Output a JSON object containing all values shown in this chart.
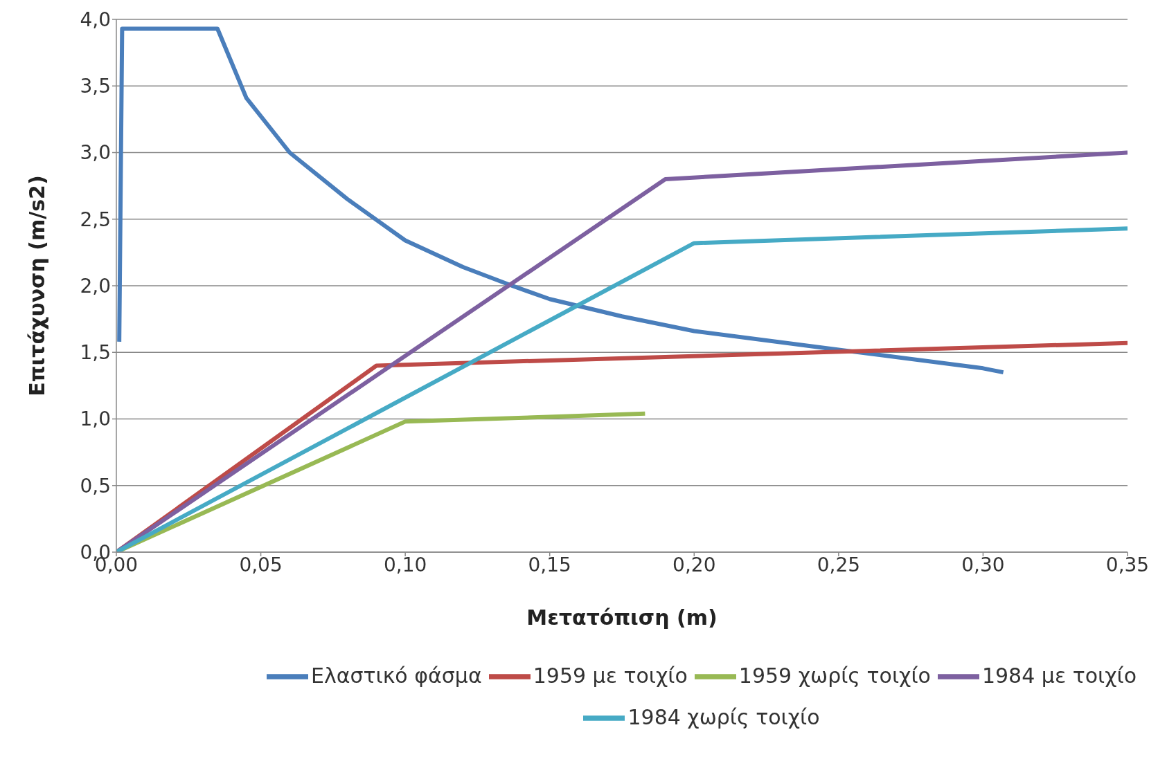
{
  "chart_data": {
    "type": "line",
    "xlabel": "Μετατόπιση (m)",
    "ylabel": "Επιτάχυνση (m/s2)",
    "xlim": [
      0,
      0.35
    ],
    "xticks": [
      {
        "value": 0,
        "label": "0,00"
      },
      {
        "value": 0.05,
        "label": "0,05"
      },
      {
        "value": 0.1,
        "label": "0,10"
      },
      {
        "value": 0.15,
        "label": "0,15"
      },
      {
        "value": 0.2,
        "label": "0,20"
      },
      {
        "value": 0.25,
        "label": "0,25"
      },
      {
        "value": 0.3,
        "label": "0,30"
      },
      {
        "value": 0.35,
        "label": "0,35"
      }
    ],
    "ylim": [
      0,
      4
    ],
    "yticks": [
      {
        "value": 0,
        "label": "0,0"
      },
      {
        "value": 0.5,
        "label": "0,5"
      },
      {
        "value": 1,
        "label": "1,0"
      },
      {
        "value": 1.5,
        "label": "1,5"
      },
      {
        "value": 2,
        "label": "2,0"
      },
      {
        "value": 2.5,
        "label": "2,5"
      },
      {
        "value": 3,
        "label": "3,0"
      },
      {
        "value": 3.5,
        "label": "3,5"
      },
      {
        "value": 4,
        "label": "4,0"
      }
    ],
    "grid": "y",
    "legend": "bottom",
    "marker": "none",
    "line_style": "solid",
    "series": [
      {
        "name": "Ελαστικό φάσμα",
        "color": "#4a7ebb",
        "x": [
          0.001,
          0.002,
          0.035,
          0.045,
          0.06,
          0.08,
          0.1,
          0.12,
          0.137,
          0.15,
          0.175,
          0.2,
          0.25,
          0.3,
          0.307
        ],
        "values": [
          1.58,
          3.93,
          3.93,
          3.41,
          3.0,
          2.65,
          2.34,
          2.14,
          2.0,
          1.9,
          1.77,
          1.66,
          1.52,
          1.38,
          1.35
        ]
      },
      {
        "name": "1959 με τοιχίο",
        "color": "#be4b48",
        "x": [
          0,
          0.09,
          0.35
        ],
        "values": [
          0,
          1.4,
          1.57
        ]
      },
      {
        "name": "1959 χωρίς τοιχίο",
        "color": "#98b954",
        "x": [
          0,
          0.1,
          0.183
        ],
        "values": [
          0,
          0.98,
          1.04
        ]
      },
      {
        "name": "1984 με τοιχίο",
        "color": "#7d60a0",
        "x": [
          0,
          0.19,
          0.35
        ],
        "values": [
          0,
          2.8,
          3.0
        ]
      },
      {
        "name": "1984 χωρίς τοιχίο",
        "color": "#46aac5",
        "x": [
          0,
          0.2,
          0.35
        ],
        "values": [
          0,
          2.32,
          2.43
        ]
      }
    ]
  }
}
